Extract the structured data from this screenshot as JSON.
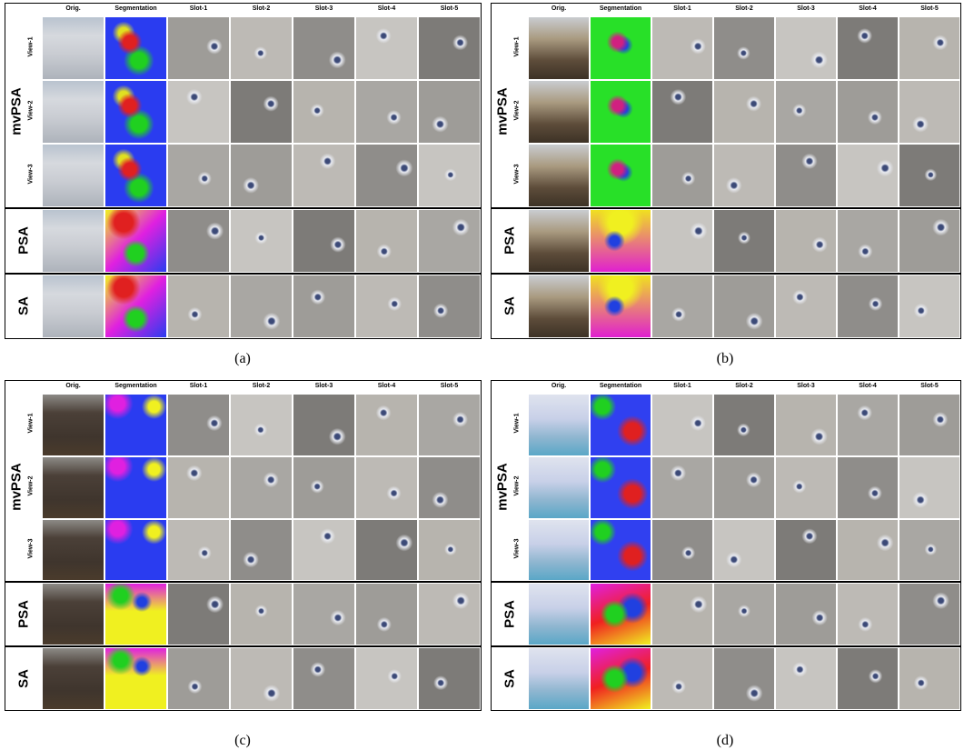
{
  "panels": [
    {
      "caption": "(a)",
      "columns": [
        "Orig.",
        "Segmentation",
        "Slot-1",
        "Slot-2",
        "Slot-3",
        "Slot-4",
        "Slot-5"
      ],
      "groups": [
        {
          "label": "mvPSA",
          "views": [
            "View-1",
            "View-2",
            "View-3"
          ]
        },
        {
          "label": "PSA"
        },
        {
          "label": "SA"
        }
      ]
    },
    {
      "caption": "(b)",
      "columns": [
        "Orig.",
        "Segmentation",
        "Slot-1",
        "Slot-2",
        "Slot-3",
        "Slot-4",
        "Slot-5"
      ],
      "groups": [
        {
          "label": "mvPSA",
          "views": [
            "View-1",
            "View-2",
            "View-3"
          ]
        },
        {
          "label": "PSA"
        },
        {
          "label": "SA"
        }
      ]
    },
    {
      "caption": "(c)",
      "columns": [
        "Orig.",
        "Segmentation",
        "Slot-1",
        "Slot-2",
        "Slot-3",
        "Slot-4",
        "Slot-5"
      ],
      "groups": [
        {
          "label": "mvPSA",
          "views": [
            "View-1",
            "View-2",
            "View-3"
          ]
        },
        {
          "label": "PSA"
        },
        {
          "label": "SA"
        }
      ]
    },
    {
      "caption": "(d)",
      "columns": [
        "Orig.",
        "Segmentation",
        "Slot-1",
        "Slot-2",
        "Slot-3",
        "Slot-4",
        "Slot-5"
      ],
      "groups": [
        {
          "label": "mvPSA",
          "views": [
            "View-1",
            "View-2",
            "View-3"
          ]
        },
        {
          "label": "PSA"
        },
        {
          "label": "SA"
        }
      ]
    }
  ]
}
